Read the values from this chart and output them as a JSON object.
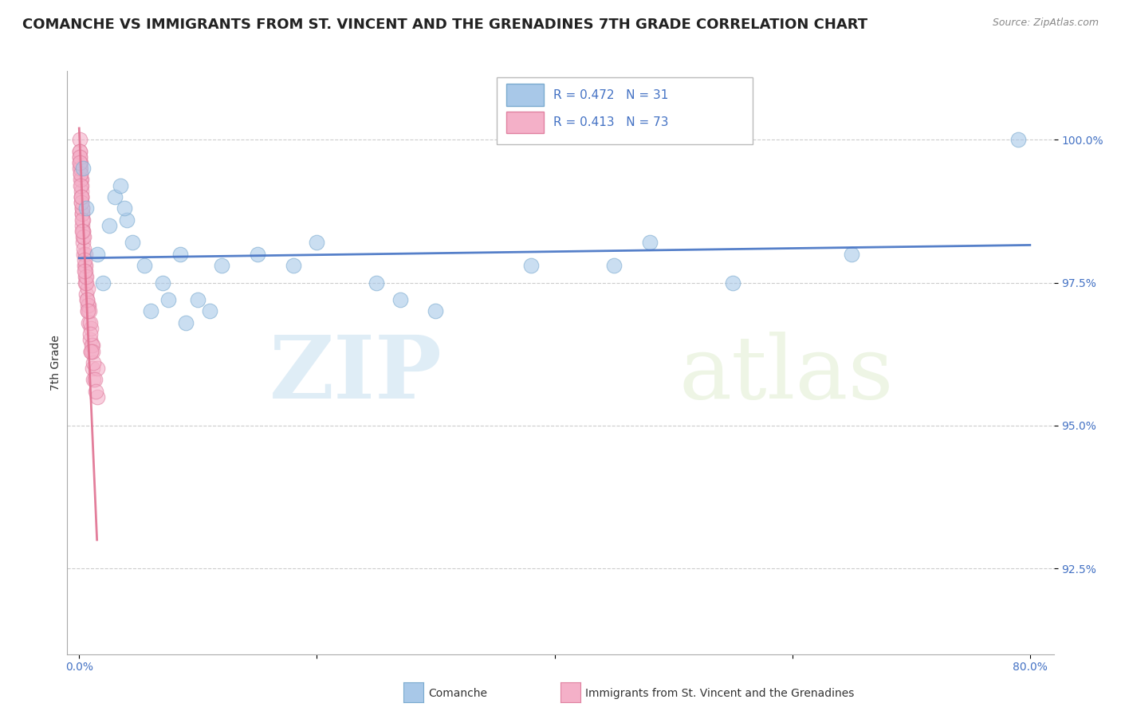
{
  "title": "COMANCHE VS IMMIGRANTS FROM ST. VINCENT AND THE GRENADINES 7TH GRADE CORRELATION CHART",
  "source_text": "Source: ZipAtlas.com",
  "ylabel": "7th Grade",
  "xlim": [
    -1.0,
    82.0
  ],
  "ylim": [
    91.0,
    101.2
  ],
  "xticks": [
    0.0,
    20.0,
    40.0,
    60.0,
    80.0
  ],
  "xtick_labels": [
    "0.0%",
    "",
    "",
    "",
    "80.0%"
  ],
  "ytick_labels": [
    "92.5%",
    "95.0%",
    "97.5%",
    "100.0%"
  ],
  "yticks": [
    92.5,
    95.0,
    97.5,
    100.0
  ],
  "bg_color": "#ffffff",
  "grid_color": "#cccccc",
  "title_fontsize": 13,
  "axis_fontsize": 10,
  "tick_fontsize": 10,
  "watermark_zip": "ZIP",
  "watermark_atlas": "atlas",
  "series_blue": {
    "name": "Comanche",
    "face": "#a8c8e8",
    "edge": "#7aaacf",
    "trend_color": "#4472c4",
    "R": 0.472,
    "N": 31,
    "x": [
      0.3,
      0.6,
      2.5,
      3.0,
      4.5,
      5.5,
      7.0,
      8.5,
      10.0,
      12.0,
      15.0,
      3.5,
      4.0,
      6.0,
      9.0,
      20.0,
      25.0,
      30.0,
      38.0,
      48.0,
      55.0,
      65.0,
      79.0,
      1.5,
      2.0,
      3.8,
      7.5,
      11.0,
      18.0,
      27.0,
      45.0
    ],
    "y": [
      99.5,
      98.8,
      98.5,
      99.0,
      98.2,
      97.8,
      97.5,
      98.0,
      97.2,
      97.8,
      98.0,
      99.2,
      98.6,
      97.0,
      96.8,
      98.2,
      97.5,
      97.0,
      97.8,
      98.2,
      97.5,
      98.0,
      100.0,
      98.0,
      97.5,
      98.8,
      97.2,
      97.0,
      97.8,
      97.2,
      97.8
    ]
  },
  "series_pink": {
    "name": "Immigrants from St. Vincent and the Grenadines",
    "face": "#f4b0c8",
    "edge": "#e080a0",
    "trend_color": "#e07090",
    "R": 0.413,
    "N": 73,
    "x": [
      0.05,
      0.08,
      0.1,
      0.12,
      0.15,
      0.18,
      0.2,
      0.22,
      0.25,
      0.28,
      0.3,
      0.35,
      0.4,
      0.45,
      0.5,
      0.55,
      0.6,
      0.65,
      0.7,
      0.8,
      0.9,
      1.0,
      1.1,
      1.2,
      1.5,
      0.05,
      0.1,
      0.2,
      0.3,
      0.5,
      0.7,
      1.0,
      1.5,
      0.08,
      0.15,
      0.25,
      0.4,
      0.6,
      0.9,
      1.2,
      0.06,
      0.12,
      0.22,
      0.35,
      0.55,
      0.8,
      1.1,
      0.07,
      0.18,
      0.32,
      0.52,
      0.75,
      1.05,
      0.09,
      0.2,
      0.38,
      0.58,
      0.85,
      1.15,
      0.04,
      0.11,
      0.24,
      0.45,
      0.68,
      0.95,
      1.3,
      0.06,
      0.16,
      0.28,
      0.48,
      0.72,
      1.0,
      1.4
    ],
    "y": [
      100.0,
      99.8,
      99.6,
      99.5,
      99.3,
      99.2,
      99.0,
      98.8,
      98.7,
      98.5,
      98.4,
      98.2,
      98.0,
      97.8,
      97.6,
      97.5,
      97.3,
      97.2,
      97.0,
      96.8,
      96.5,
      96.3,
      96.0,
      95.8,
      95.5,
      99.7,
      99.4,
      98.9,
      98.6,
      98.0,
      97.4,
      96.7,
      96.0,
      99.6,
      99.1,
      98.7,
      98.1,
      97.5,
      96.8,
      96.1,
      99.8,
      99.3,
      98.8,
      98.3,
      97.7,
      97.1,
      96.4,
      99.5,
      99.0,
      98.4,
      97.8,
      97.1,
      96.4,
      99.4,
      98.9,
      98.3,
      97.6,
      97.0,
      96.3,
      99.7,
      99.2,
      98.6,
      97.9,
      97.2,
      96.6,
      95.8,
      99.6,
      99.0,
      98.4,
      97.7,
      97.0,
      96.3,
      95.6
    ]
  }
}
